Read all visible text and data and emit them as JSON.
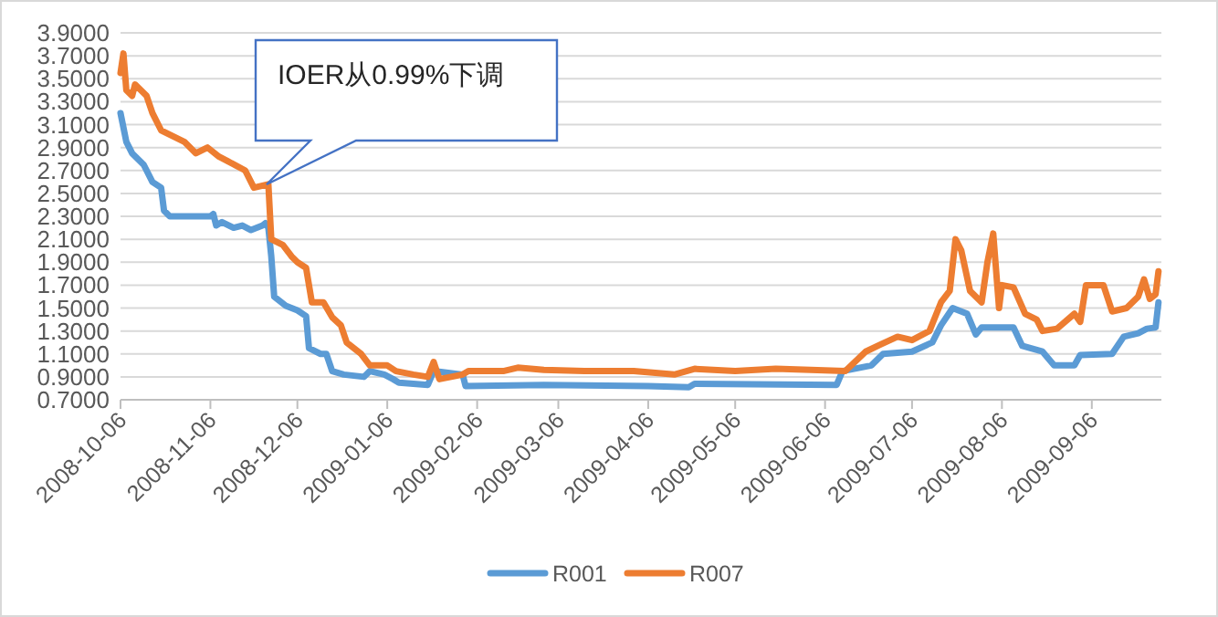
{
  "chart_data": {
    "type": "line",
    "xlim": [
      "2008-10-06",
      "2009-09-30"
    ],
    "xticks": [
      "2008-10-06",
      "2008-11-06",
      "2008-12-06",
      "2009-01-06",
      "2009-02-06",
      "2009-03-06",
      "2009-04-06",
      "2009-05-06",
      "2009-06-06",
      "2009-07-06",
      "2009-08-06",
      "2009-09-06"
    ],
    "ylim": [
      0.7,
      3.9
    ],
    "yticks": [
      {
        "value": 0.7,
        "label": "0.7000"
      },
      {
        "value": 0.9,
        "label": "0.9000"
      },
      {
        "value": 1.1,
        "label": "1.1000"
      },
      {
        "value": 1.3,
        "label": "1.3000"
      },
      {
        "value": 1.5,
        "label": "1.5000"
      },
      {
        "value": 1.7,
        "label": "1.7000"
      },
      {
        "value": 1.9,
        "label": "1.9000"
      },
      {
        "value": 2.1,
        "label": "2.1000"
      },
      {
        "value": 2.3,
        "label": "2.3000"
      },
      {
        "value": 2.5,
        "label": "2.5000"
      },
      {
        "value": 2.7,
        "label": "2.7000"
      },
      {
        "value": 2.9,
        "label": "2.9000"
      },
      {
        "value": 3.1,
        "label": "3.1000"
      },
      {
        "value": 3.3,
        "label": "3.3000"
      },
      {
        "value": 3.5,
        "label": "3.5000"
      },
      {
        "value": 3.7,
        "label": "3.7000"
      },
      {
        "value": 3.9,
        "label": "3.9000"
      }
    ],
    "grid": "y",
    "legend": "bottom",
    "marker": "none",
    "line_style": "solid",
    "annotations": [
      "IOER从0.99%下调"
    ],
    "series": [
      {
        "name": "R001",
        "color": "#5b9bd5",
        "x": [
          "2008-10-06",
          "2008-10-08",
          "2008-10-10",
          "2008-10-14",
          "2008-10-17",
          "2008-10-20",
          "2008-10-21",
          "2008-10-23",
          "2008-11-06",
          "2008-11-07",
          "2008-11-08",
          "2008-11-10",
          "2008-11-14",
          "2008-11-17",
          "2008-11-20",
          "2008-11-24",
          "2008-11-25",
          "2008-11-26",
          "2008-11-27",
          "2008-11-28",
          "2008-12-02",
          "2008-12-06",
          "2008-12-09",
          "2008-12-10",
          "2008-12-14",
          "2008-12-16",
          "2008-12-18",
          "2008-12-22",
          "2008-12-29",
          "2008-12-31",
          "2009-01-05",
          "2009-01-08",
          "2009-01-10",
          "2009-01-20",
          "2009-01-22",
          "2009-02-01",
          "2009-02-02",
          "2009-03-01",
          "2009-04-06",
          "2009-04-20",
          "2009-04-22",
          "2009-06-10",
          "2009-06-12",
          "2009-06-22",
          "2009-06-26",
          "2009-07-06",
          "2009-07-13",
          "2009-07-16",
          "2009-07-20",
          "2009-07-25",
          "2009-07-28",
          "2009-07-30",
          "2009-08-10",
          "2009-08-13",
          "2009-08-20",
          "2009-08-24",
          "2009-08-31",
          "2009-09-02",
          "2009-09-13",
          "2009-09-17",
          "2009-09-22",
          "2009-09-25",
          "2009-09-28",
          "2009-09-29"
        ],
        "values": [
          3.2,
          2.95,
          2.85,
          2.75,
          2.6,
          2.55,
          2.35,
          2.3,
          2.3,
          2.32,
          2.22,
          2.25,
          2.2,
          2.22,
          2.18,
          2.22,
          2.24,
          2.2,
          1.95,
          1.6,
          1.52,
          1.48,
          1.43,
          1.15,
          1.1,
          1.1,
          0.95,
          0.92,
          0.9,
          0.95,
          0.92,
          0.88,
          0.85,
          0.83,
          0.95,
          0.92,
          0.82,
          0.83,
          0.82,
          0.81,
          0.84,
          0.83,
          0.95,
          1.0,
          1.1,
          1.12,
          1.2,
          1.35,
          1.5,
          1.45,
          1.27,
          1.33,
          1.33,
          1.17,
          1.12,
          1.0,
          1.0,
          1.09,
          1.1,
          1.25,
          1.28,
          1.32,
          1.33,
          1.55
        ]
      },
      {
        "name": "R007",
        "color": "#ed7d31",
        "x": [
          "2008-10-06",
          "2008-10-07",
          "2008-10-08",
          "2008-10-10",
          "2008-10-11",
          "2008-10-15",
          "2008-10-17",
          "2008-10-20",
          "2008-10-24",
          "2008-10-28",
          "2008-11-01",
          "2008-11-05",
          "2008-11-09",
          "2008-11-12",
          "2008-11-18",
          "2008-11-21",
          "2008-11-26",
          "2008-11-27",
          "2008-12-01",
          "2008-12-04",
          "2008-12-06",
          "2008-12-09",
          "2008-12-11",
          "2008-12-15",
          "2008-12-18",
          "2008-12-21",
          "2008-12-23",
          "2008-12-28",
          "2008-12-31",
          "2009-01-06",
          "2009-01-09",
          "2009-01-15",
          "2009-01-20",
          "2009-01-22",
          "2009-01-24",
          "2009-02-01",
          "2009-02-03",
          "2009-02-15",
          "2009-02-20",
          "2009-03-01",
          "2009-03-15",
          "2009-04-01",
          "2009-04-15",
          "2009-04-22",
          "2009-05-06",
          "2009-05-20",
          "2009-06-13",
          "2009-06-20",
          "2009-06-25",
          "2009-07-01",
          "2009-07-06",
          "2009-07-12",
          "2009-07-16",
          "2009-07-19",
          "2009-07-21",
          "2009-07-23",
          "2009-07-26",
          "2009-07-30",
          "2009-08-01",
          "2009-08-03",
          "2009-08-05",
          "2009-08-06",
          "2009-08-10",
          "2009-08-14",
          "2009-08-18",
          "2009-08-20",
          "2009-08-25",
          "2009-08-31",
          "2009-09-02",
          "2009-09-04",
          "2009-09-10",
          "2009-09-13",
          "2009-09-18",
          "2009-09-22",
          "2009-09-24",
          "2009-09-26",
          "2009-09-28",
          "2009-09-29"
        ],
        "values": [
          3.55,
          3.72,
          3.4,
          3.35,
          3.45,
          3.35,
          3.2,
          3.05,
          3.0,
          2.95,
          2.85,
          2.9,
          2.82,
          2.78,
          2.7,
          2.55,
          2.58,
          2.1,
          2.05,
          1.95,
          1.9,
          1.85,
          1.55,
          1.55,
          1.42,
          1.35,
          1.2,
          1.1,
          1.0,
          1.0,
          0.95,
          0.92,
          0.9,
          1.03,
          0.88,
          0.92,
          0.95,
          0.95,
          0.98,
          0.96,
          0.95,
          0.95,
          0.92,
          0.97,
          0.95,
          0.97,
          0.95,
          1.12,
          1.18,
          1.25,
          1.22,
          1.3,
          1.55,
          1.65,
          2.1,
          2.0,
          1.65,
          1.55,
          1.9,
          2.15,
          1.5,
          1.7,
          1.68,
          1.45,
          1.4,
          1.3,
          1.32,
          1.45,
          1.38,
          1.7,
          1.7,
          1.47,
          1.5,
          1.6,
          1.75,
          1.58,
          1.62,
          1.82
        ]
      }
    ]
  }
}
